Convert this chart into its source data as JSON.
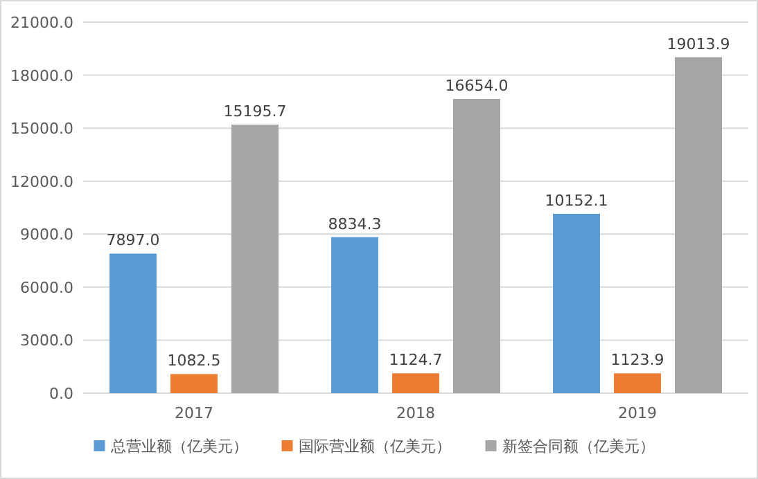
{
  "chart_data": {
    "type": "bar",
    "categories": [
      "2017",
      "2018",
      "2019"
    ],
    "series": [
      {
        "name": "总营业额（亿美元）",
        "color": "#5b9bd5",
        "values": [
          7897,
          8834.3,
          10152.1
        ],
        "value_labels": [
          "7897.0",
          "8834.3",
          "10152.1"
        ]
      },
      {
        "name": "国际营业额（亿美元）",
        "color": "#ed7d31",
        "values": [
          1082.5,
          1124.7,
          1123.9
        ],
        "value_labels": [
          "1082.5",
          "1124.7",
          "1123.9"
        ]
      },
      {
        "name": "新签合同额（亿美元）",
        "color": "#a5a5a5",
        "values": [
          15195.7,
          16654,
          19013.9
        ],
        "value_labels": [
          "15195.7",
          "16654.0",
          "19013.9"
        ]
      }
    ],
    "ylim": [
      0,
      21000
    ],
    "yticks": [
      {
        "value": 0,
        "label": "0.0"
      },
      {
        "value": 3000,
        "label": "3000.0"
      },
      {
        "value": 6000,
        "label": "6000.0"
      },
      {
        "value": 9000,
        "label": "9000.0"
      },
      {
        "value": 12000,
        "label": "12000.0"
      },
      {
        "value": 15000,
        "label": "15000.0"
      },
      {
        "value": 18000,
        "label": "18000.0"
      },
      {
        "value": 21000,
        "label": "21000.0"
      }
    ],
    "grid": "y",
    "legend": "bottom"
  }
}
